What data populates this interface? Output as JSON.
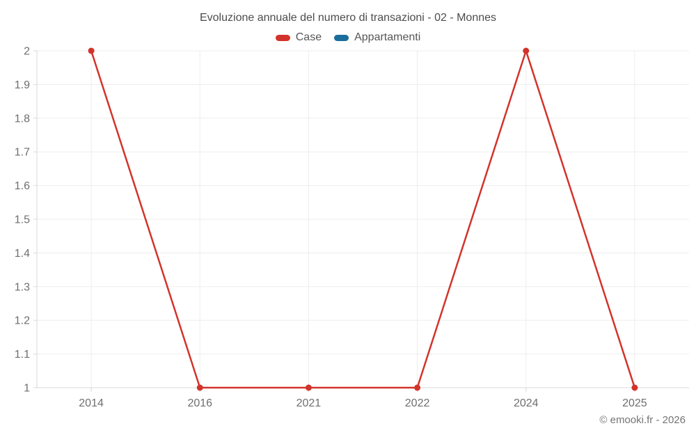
{
  "title": "Evoluzione annuale del numero di transazioni - 02 - Monnes",
  "footer": "© emooki.fr - 2026",
  "colors": {
    "case_red": "#d2332b",
    "appartamenti_blue": "#1b6d9c",
    "gridline": "#ededed",
    "axis_line": "#d8d8d8",
    "tick_text": "#6e6e6e",
    "title_text": "#4c4c4c",
    "legend_text": "#565656",
    "footer_text": "#757575"
  },
  "chart_data": {
    "type": "line",
    "title": "Evoluzione annuale del numero di transazioni - 02 - Monnes",
    "categories": [
      "2014",
      "2016",
      "2021",
      "2022",
      "2024",
      "2025"
    ],
    "series": [
      {
        "name": "Case",
        "color": "#d2332b",
        "values": [
          2,
          1,
          1,
          1,
          2,
          1
        ]
      },
      {
        "name": "Appartamenti",
        "color": "#1b6d9c",
        "values": []
      }
    ],
    "xlabel": "",
    "ylabel": "",
    "ylim": [
      1,
      2
    ],
    "yticks": [
      "1",
      "1.1",
      "1.2",
      "1.3",
      "1.4",
      "1.5",
      "1.6",
      "1.7",
      "1.8",
      "1.9",
      "2"
    ],
    "grid": true,
    "legend_position": "top",
    "marker_radius": 4.5,
    "line_width": 2.5
  }
}
